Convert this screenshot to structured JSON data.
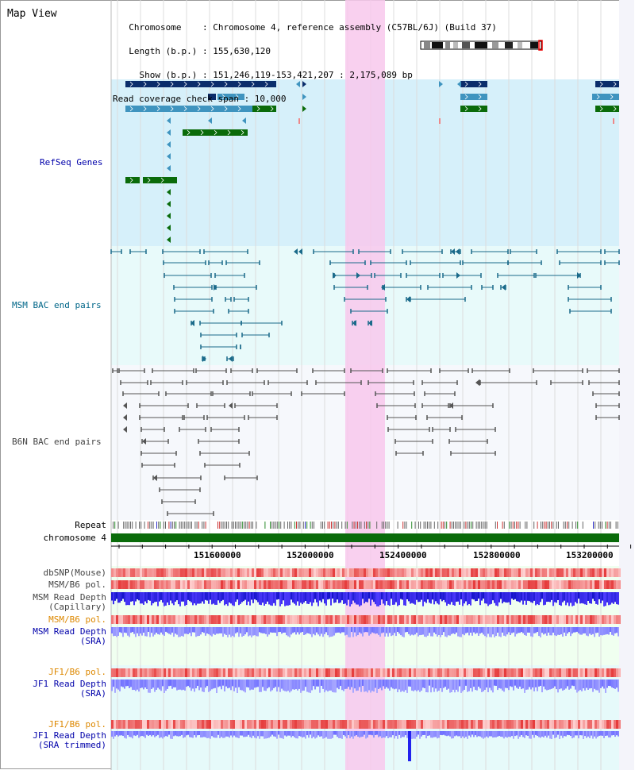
{
  "view_title": "Map View",
  "info_lines": [
    "  Chromosome    : Chromosome 4, reference assembly (C57BL/6J) (Build 37)",
    "  Length (b.p.) : 155,630,120",
    "    Show (b.p.) : 151,246,119-153,421,207 : 2,175,089 bp",
    "Read coverage check span : 10,000"
  ],
  "tracks": {
    "refseq": "RefSeq Genes",
    "msm_bac": "MSM BAC end pairs",
    "b6n_bac": "B6N BAC end pairs",
    "repeat": "Repeat",
    "chromosome": "chromosome 4",
    "dbsnp": "dbSNP(Mouse)",
    "msm_pol": "MSM/B6 pol.",
    "msm_depth_cap": [
      "MSM Read Depth",
      "(Capillary)"
    ],
    "msm_pol_sra": "MSM/B6 pol.",
    "msm_depth_sra": [
      "MSM Read Depth",
      "(SRA)"
    ],
    "jf1_pol": "JF1/B6 pol.",
    "jf1_depth": [
      "JF1 Read Depth",
      "(SRA)"
    ],
    "jf1_pol_trim": "JF1/B6 pol.",
    "jf1_depth_trim": [
      "JF1 Read Depth",
      "(SRA trimmed)"
    ]
  },
  "ruler": {
    "ticks": [
      "151600000",
      "152000000",
      "152400000",
      "152800000",
      "153200000"
    ]
  },
  "colors": {
    "refseq_bg": "#d6f0fa",
    "bac_bg": "#e8fafa",
    "b6n_bg": "#f6f8fc",
    "highlight": "#f8c8ec",
    "gene_dark": "#0b2d6b",
    "gene_mid": "#3f94bf",
    "gene_green": "#0a6b0a",
    "bac_line": "#1a6a8a",
    "b6n_line": "#555555",
    "chrom": "#0a6b0a",
    "snp": "#ee4444",
    "depth": "#2222ee",
    "label_blue": "#0000aa",
    "label_teal": "#006688",
    "label_gray": "#444444",
    "label_orange": "#dd8800"
  }
}
